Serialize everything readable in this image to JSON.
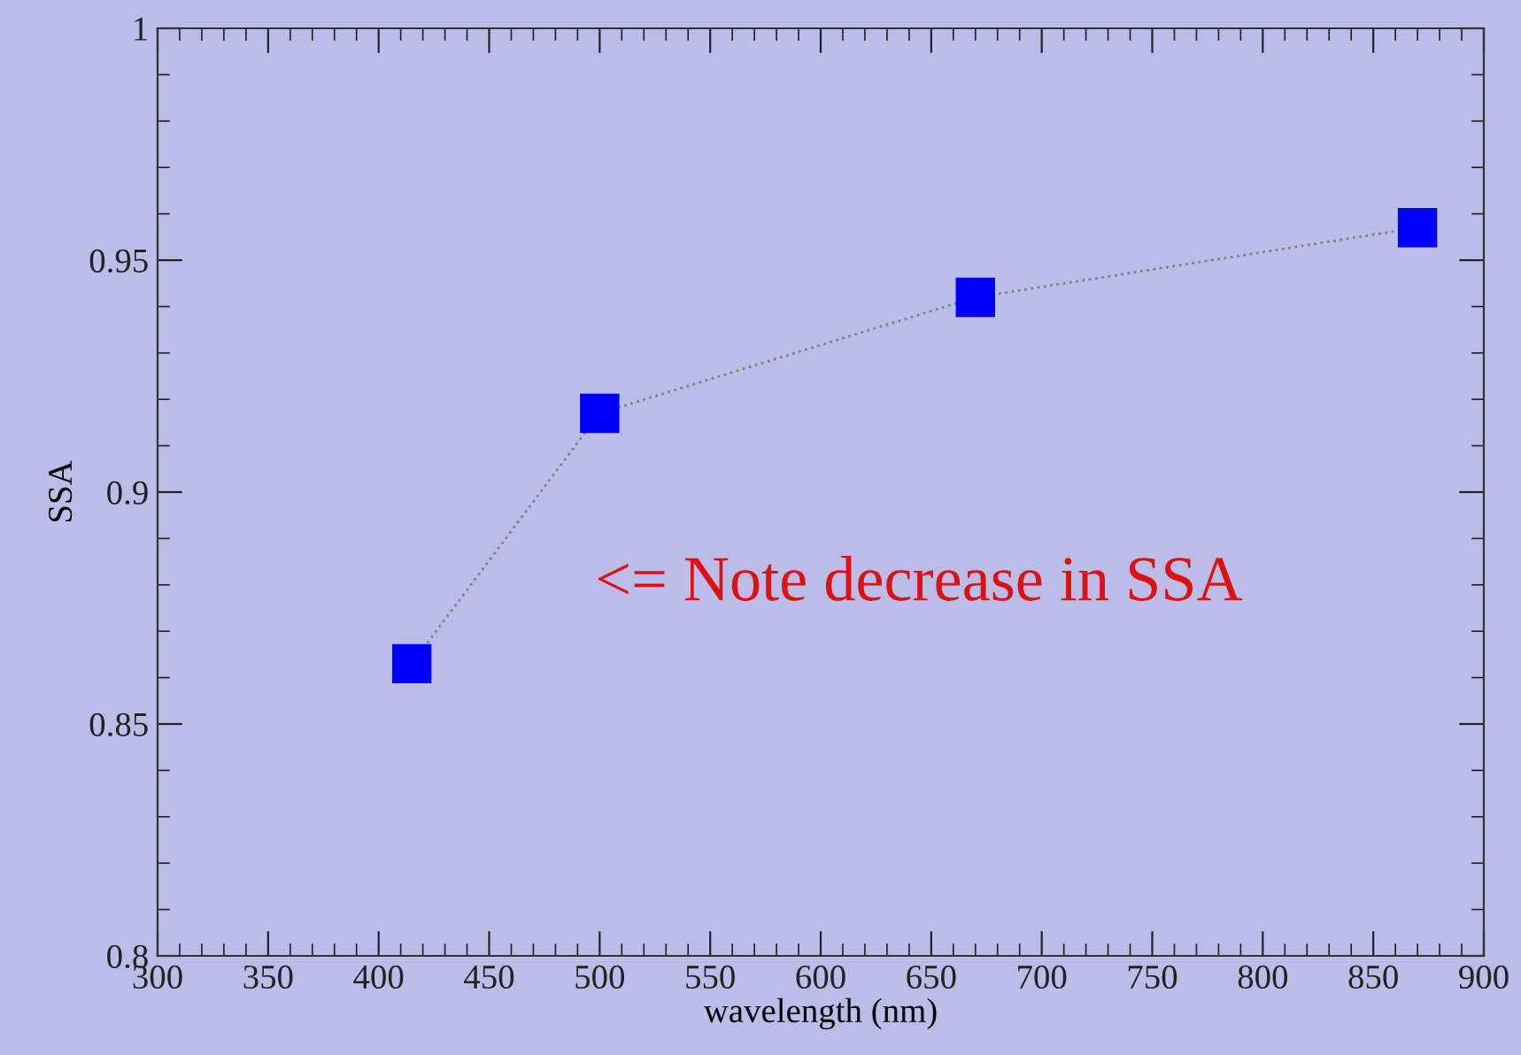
{
  "chart_data": {
    "type": "line",
    "xlabel": "wavelength (nm)",
    "ylabel": "SSA",
    "x": [
      415,
      500,
      670,
      870
    ],
    "series": [
      {
        "color": "#0000ff",
        "values": [
          0.863,
          0.917,
          0.942,
          0.957
        ]
      }
    ],
    "marker": "square",
    "line_style": "dotted",
    "xlim": [
      300,
      900
    ],
    "xticks": [
      300,
      350,
      400,
      450,
      500,
      550,
      600,
      650,
      700,
      750,
      800,
      850,
      900
    ],
    "ylim": [
      0.8,
      1
    ],
    "yticks": [
      {
        "value": 0.8,
        "label": "0.8"
      },
      {
        "value": 0.85,
        "label": "0.85"
      },
      {
        "value": 0.9,
        "label": "0.9"
      },
      {
        "value": 0.95,
        "label": "0.95"
      },
      {
        "value": 1,
        "label": "1"
      }
    ],
    "grid": false,
    "legend": false,
    "annotations": [
      "<= Note decrease in SSA"
    ]
  }
}
